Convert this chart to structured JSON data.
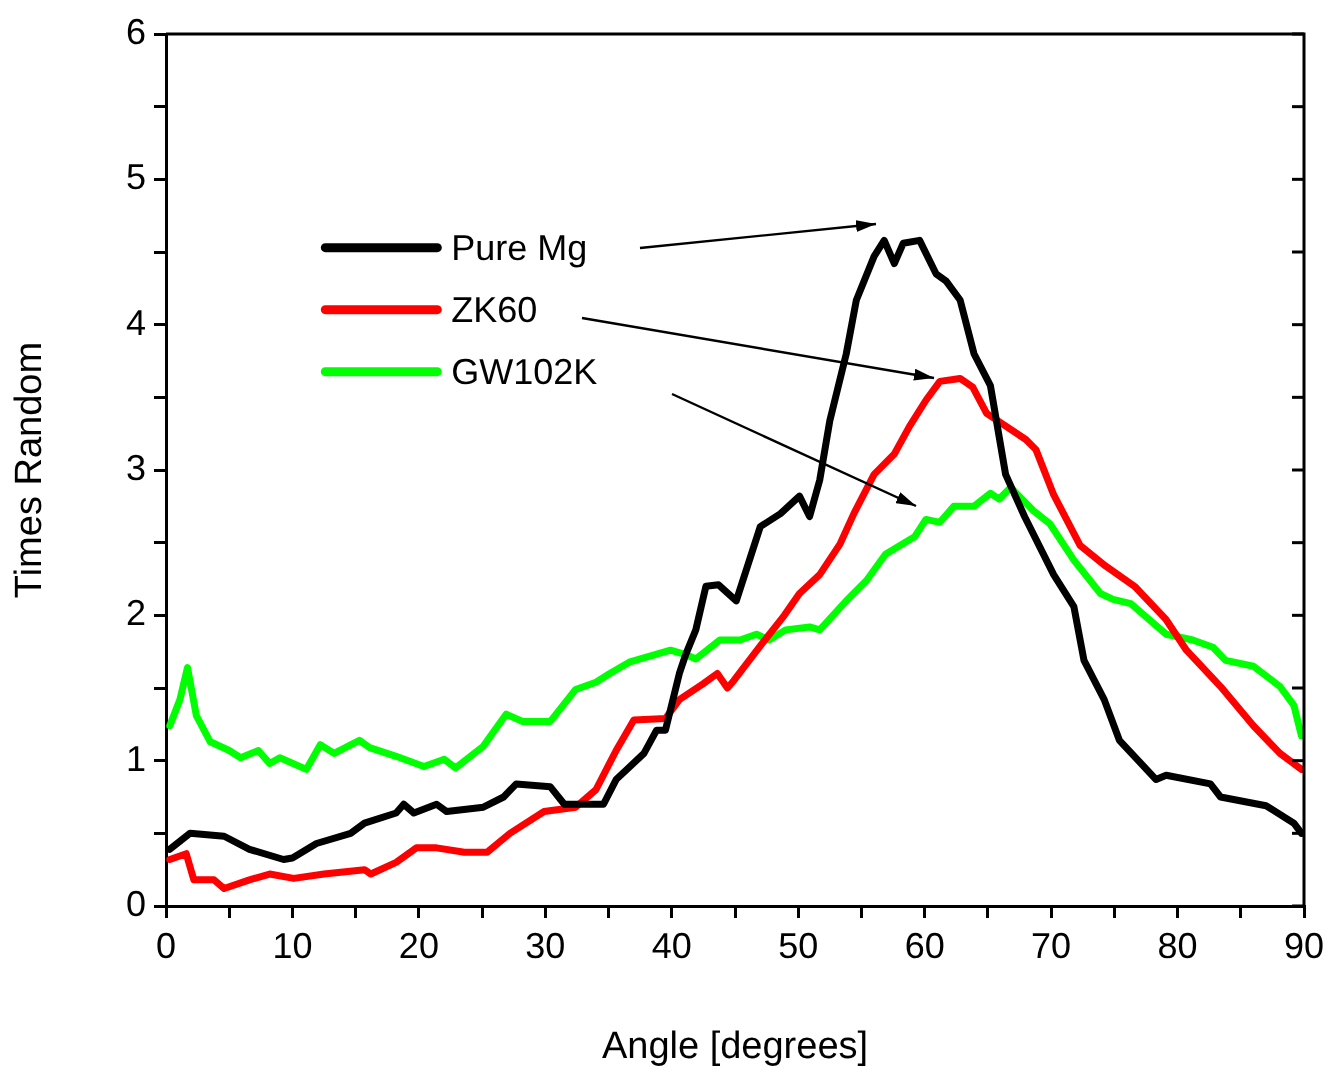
{
  "chart_data": {
    "type": "line",
    "xlabel": "Angle [degrees]",
    "ylabel": "Times Random",
    "xlim": [
      0,
      90
    ],
    "xticks": [
      0,
      {
        "value": 5,
        "label": null
      },
      10,
      {
        "value": 15,
        "label": null
      },
      20,
      {
        "value": 25,
        "label": null
      },
      30,
      {
        "value": 35,
        "label": null
      },
      40,
      {
        "value": 45,
        "label": null
      },
      50,
      {
        "value": 55,
        "label": null
      },
      60,
      {
        "value": 65,
        "label": null
      },
      70,
      {
        "value": 75,
        "label": null
      },
      80,
      {
        "value": 85,
        "label": null
      },
      90
    ],
    "ylim": [
      0,
      6
    ],
    "yticks": [
      0,
      {
        "value": 0.5,
        "label": null
      },
      1,
      {
        "value": 1.5,
        "label": null
      },
      2,
      {
        "value": 2.5,
        "label": null
      },
      3,
      {
        "value": 3.5,
        "label": null
      },
      4,
      {
        "value": 4.5,
        "label": null
      },
      5,
      {
        "value": 5.5,
        "label": null
      },
      6
    ],
    "grid": false,
    "legend": "top left",
    "marker": "none",
    "line_style": "solid",
    "series": [
      {
        "name": "Pure Mg",
        "color": "#000000",
        "x": [
          0.3,
          1.9,
          4.6,
          6.6,
          9.3,
          10,
          11.9,
          14.6,
          15.7,
          18.2,
          18.8,
          19.6,
          21.4,
          22.2,
          25.1,
          26.7,
          27.7,
          30.4,
          31.5,
          34.6,
          35.6,
          37.8,
          38.8,
          39.5,
          40.6,
          41.1,
          41.9,
          42.7,
          43.7,
          45.1,
          47,
          48.6,
          50.1,
          50.9,
          51.7,
          52.5,
          53.8,
          54.6,
          56,
          56.8,
          57.6,
          58.3,
          59.6,
          60.9,
          61.7,
          62.8,
          63.9,
          65.2,
          66.4,
          67.9,
          70.2,
          71.8,
          72.6,
          74.2,
          75.4,
          78.3,
          79.1,
          82.6,
          83.4,
          87,
          89.2,
          89.8
        ],
        "values": [
          0.39,
          0.5,
          0.48,
          0.39,
          0.32,
          0.33,
          0.43,
          0.5,
          0.57,
          0.64,
          0.7,
          0.64,
          0.7,
          0.65,
          0.68,
          0.75,
          0.84,
          0.82,
          0.7,
          0.7,
          0.87,
          1.05,
          1.21,
          1.21,
          1.6,
          1.73,
          1.9,
          2.2,
          2.21,
          2.1,
          2.61,
          2.7,
          2.82,
          2.68,
          2.93,
          3.34,
          3.8,
          4.17,
          4.47,
          4.58,
          4.42,
          4.56,
          4.58,
          4.35,
          4.3,
          4.17,
          3.8,
          3.58,
          2.97,
          2.68,
          2.28,
          2.06,
          1.69,
          1.42,
          1.14,
          0.87,
          0.9,
          0.84,
          0.75,
          0.69,
          0.57,
          0.5
        ]
      },
      {
        "name": "ZK60",
        "color": "#ff0000",
        "x": [
          0.3,
          1.6,
          2.2,
          3.8,
          4.6,
          6.6,
          8.2,
          10.1,
          12.5,
          15.7,
          16.2,
          18.2,
          19.8,
          21.4,
          23.6,
          25.4,
          27.2,
          29.9,
          32.4,
          34,
          35.6,
          37,
          39.5,
          40.6,
          42.5,
          43.6,
          44.4,
          44.9,
          47,
          48.9,
          50.1,
          51.7,
          53.3,
          54.4,
          56,
          57.6,
          58.8,
          60.1,
          61.2,
          62.8,
          63.8,
          64.9,
          68,
          68.8,
          70.2,
          72.3,
          74.3,
          76.6,
          79.1,
          80.7,
          83.4,
          86,
          88.1,
          89.8
        ],
        "values": [
          0.32,
          0.36,
          0.18,
          0.18,
          0.12,
          0.18,
          0.22,
          0.19,
          0.22,
          0.25,
          0.22,
          0.3,
          0.4,
          0.4,
          0.37,
          0.37,
          0.5,
          0.65,
          0.68,
          0.8,
          1.07,
          1.28,
          1.29,
          1.42,
          1.53,
          1.6,
          1.5,
          1.55,
          1.79,
          2,
          2.15,
          2.28,
          2.49,
          2.7,
          2.97,
          3.11,
          3.3,
          3.48,
          3.61,
          3.63,
          3.57,
          3.39,
          3.21,
          3.14,
          2.83,
          2.48,
          2.34,
          2.2,
          1.97,
          1.76,
          1.51,
          1.24,
          1.05,
          0.94
        ]
      },
      {
        "name": "GW102K",
        "color": "#00ff00",
        "x": [
          0.3,
          1.1,
          1.7,
          2.4,
          3.5,
          5,
          5.9,
          7.3,
          8.2,
          9,
          11.1,
          12.2,
          13.3,
          15.3,
          16.1,
          18.2,
          20.4,
          22,
          22.9,
          25.1,
          26.9,
          28.2,
          30.4,
          32.4,
          34,
          35.1,
          36.7,
          39.9,
          41.1,
          41.9,
          43.8,
          45.4,
          46.7,
          47.7,
          49,
          50.9,
          51.7,
          53.8,
          55.4,
          56.9,
          59.2,
          60.1,
          61.2,
          62.3,
          63.9,
          65.2,
          65.9,
          66.8,
          68.6,
          69.9,
          71.8,
          73.9,
          74.9,
          76.3,
          79.1,
          81.2,
          82.8,
          83.8,
          86,
          88.1,
          89.2,
          89.8
        ],
        "values": [
          1.24,
          1.42,
          1.64,
          1.31,
          1.13,
          1.07,
          1.02,
          1.07,
          0.98,
          1.02,
          0.94,
          1.11,
          1.05,
          1.14,
          1.09,
          1.03,
          0.96,
          1.01,
          0.95,
          1.1,
          1.32,
          1.27,
          1.27,
          1.49,
          1.54,
          1.6,
          1.68,
          1.76,
          1.73,
          1.7,
          1.83,
          1.83,
          1.87,
          1.83,
          1.9,
          1.92,
          1.9,
          2.1,
          2.24,
          2.42,
          2.54,
          2.66,
          2.64,
          2.75,
          2.75,
          2.84,
          2.8,
          2.88,
          2.72,
          2.63,
          2.38,
          2.15,
          2.11,
          2.08,
          1.87,
          1.83,
          1.78,
          1.69,
          1.65,
          1.51,
          1.38,
          1.17
        ]
      }
    ]
  }
}
